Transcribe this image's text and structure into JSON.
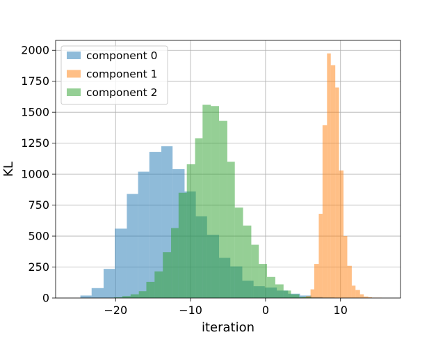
{
  "chart_data": {
    "type": "bar",
    "subtype": "overlapping-histogram",
    "title": "",
    "xlabel": "iteration",
    "ylabel": "KL",
    "xlim": [
      -28,
      18
    ],
    "ylim": [
      0,
      2080
    ],
    "x_ticks": [
      -20,
      -10,
      0,
      10
    ],
    "x_tick_labels": [
      "−20",
      "−10",
      "0",
      "10"
    ],
    "y_ticks": [
      0,
      250,
      500,
      750,
      1000,
      1250,
      1500,
      1750,
      2000
    ],
    "y_tick_labels": [
      "0",
      "250",
      "500",
      "750",
      "1000",
      "1250",
      "1500",
      "1750",
      "2000"
    ],
    "grid": true,
    "legend_position": "top-left",
    "bar_alpha": 0.5,
    "series": [
      {
        "name": "component 0",
        "color": "#1f77b4",
        "bins": [
          {
            "x0": -24.7,
            "x1": -23.2,
            "value": 20
          },
          {
            "x0": -23.2,
            "x1": -21.6,
            "value": 80
          },
          {
            "x0": -21.6,
            "x1": -20.1,
            "value": 235
          },
          {
            "x0": -20.1,
            "x1": -18.5,
            "value": 560
          },
          {
            "x0": -18.5,
            "x1": -17.0,
            "value": 840
          },
          {
            "x0": -17.0,
            "x1": -15.5,
            "value": 1020
          },
          {
            "x0": -15.5,
            "x1": -13.9,
            "value": 1180
          },
          {
            "x0": -13.9,
            "x1": -12.4,
            "value": 1225
          },
          {
            "x0": -12.4,
            "x1": -10.8,
            "value": 1040
          },
          {
            "x0": -10.8,
            "x1": -9.3,
            "value": 860
          },
          {
            "x0": -9.3,
            "x1": -7.8,
            "value": 660
          },
          {
            "x0": -7.8,
            "x1": -6.2,
            "value": 510
          },
          {
            "x0": -6.2,
            "x1": -4.7,
            "value": 325
          },
          {
            "x0": -4.7,
            "x1": -3.1,
            "value": 255
          },
          {
            "x0": -3.1,
            "x1": -1.6,
            "value": 140
          },
          {
            "x0": -1.6,
            "x1": -0.1,
            "value": 95
          },
          {
            "x0": -0.1,
            "x1": 1.5,
            "value": 85
          },
          {
            "x0": 1.5,
            "x1": 3.0,
            "value": 60
          },
          {
            "x0": 3.0,
            "x1": 4.6,
            "value": 35
          },
          {
            "x0": 4.6,
            "x1": 6.1,
            "value": 20
          },
          {
            "x0": 6.1,
            "x1": 7.6,
            "value": 8
          },
          {
            "x0": 7.6,
            "x1": 9.2,
            "value": 4
          }
        ]
      },
      {
        "name": "component 1",
        "color": "#ff7f0e",
        "bins": [
          {
            "x0": 4.9,
            "x1": 5.4,
            "value": 5
          },
          {
            "x0": 5.4,
            "x1": 6.0,
            "value": 15
          },
          {
            "x0": 6.0,
            "x1": 6.5,
            "value": 70
          },
          {
            "x0": 6.5,
            "x1": 7.1,
            "value": 275
          },
          {
            "x0": 7.1,
            "x1": 7.6,
            "value": 680
          },
          {
            "x0": 7.6,
            "x1": 8.2,
            "value": 1395
          },
          {
            "x0": 8.2,
            "x1": 8.7,
            "value": 1975
          },
          {
            "x0": 8.7,
            "x1": 9.3,
            "value": 1880
          },
          {
            "x0": 9.3,
            "x1": 9.8,
            "value": 1700
          },
          {
            "x0": 9.8,
            "x1": 10.4,
            "value": 1030
          },
          {
            "x0": 10.4,
            "x1": 10.9,
            "value": 500
          },
          {
            "x0": 10.9,
            "x1": 11.5,
            "value": 260
          },
          {
            "x0": 11.5,
            "x1": 12.0,
            "value": 100
          },
          {
            "x0": 12.0,
            "x1": 12.6,
            "value": 65
          },
          {
            "x0": 12.6,
            "x1": 13.1,
            "value": 30
          },
          {
            "x0": 13.1,
            "x1": 13.7,
            "value": 12
          },
          {
            "x0": 13.7,
            "x1": 14.2,
            "value": 6
          },
          {
            "x0": 14.2,
            "x1": 15.5,
            "value": 3
          }
        ]
      },
      {
        "name": "component 2",
        "color": "#2ca02c",
        "bins": [
          {
            "x0": -20.2,
            "x1": -19.1,
            "value": 5
          },
          {
            "x0": -19.1,
            "x1": -18.0,
            "value": 15
          },
          {
            "x0": -18.0,
            "x1": -16.9,
            "value": 30
          },
          {
            "x0": -16.9,
            "x1": -15.9,
            "value": 55
          },
          {
            "x0": -15.9,
            "x1": -14.8,
            "value": 130
          },
          {
            "x0": -14.8,
            "x1": -13.7,
            "value": 215
          },
          {
            "x0": -13.7,
            "x1": -12.6,
            "value": 370
          },
          {
            "x0": -12.6,
            "x1": -11.6,
            "value": 565
          },
          {
            "x0": -11.6,
            "x1": -10.5,
            "value": 850
          },
          {
            "x0": -10.5,
            "x1": -9.4,
            "value": 1080
          },
          {
            "x0": -9.4,
            "x1": -8.4,
            "value": 1290
          },
          {
            "x0": -8.4,
            "x1": -7.3,
            "value": 1560
          },
          {
            "x0": -7.3,
            "x1": -6.2,
            "value": 1550
          },
          {
            "x0": -6.2,
            "x1": -5.1,
            "value": 1430
          },
          {
            "x0": -5.1,
            "x1": -4.1,
            "value": 1100
          },
          {
            "x0": -4.1,
            "x1": -3.0,
            "value": 730
          },
          {
            "x0": -3.0,
            "x1": -1.9,
            "value": 585
          },
          {
            "x0": -1.9,
            "x1": -0.9,
            "value": 430
          },
          {
            "x0": -0.9,
            "x1": 0.2,
            "value": 275
          },
          {
            "x0": 0.2,
            "x1": 1.3,
            "value": 170
          },
          {
            "x0": 1.3,
            "x1": 2.4,
            "value": 110
          },
          {
            "x0": 2.4,
            "x1": 3.4,
            "value": 60
          },
          {
            "x0": 3.4,
            "x1": 4.5,
            "value": 30
          },
          {
            "x0": 4.5,
            "x1": 6.1,
            "value": 8
          }
        ]
      }
    ]
  }
}
